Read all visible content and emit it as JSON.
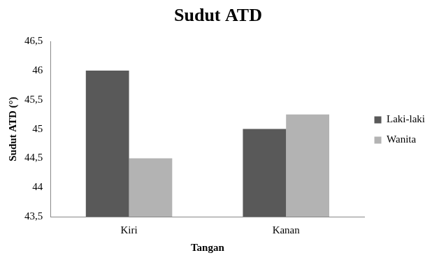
{
  "chart_data": {
    "type": "bar",
    "title": "Sudut ATD",
    "x_label": "Tangan",
    "y_label": "Sudut ATD (°)",
    "categories": [
      "Kiri",
      "Kanan"
    ],
    "series": [
      {
        "name": "Laki-laki",
        "color": "#595959",
        "values": [
          46,
          45
        ]
      },
      {
        "name": "Wanita",
        "color": "#b3b3b3",
        "values": [
          44.5,
          45.25
        ]
      }
    ],
    "ylim": [
      43.5,
      46.5
    ],
    "yticks": [
      {
        "value": 43.5,
        "label": "43,5"
      },
      44,
      {
        "value": 44.5,
        "label": "44,5"
      },
      45,
      {
        "value": 45.5,
        "label": "45,5"
      },
      46,
      {
        "value": 46.5,
        "label": "46,5"
      }
    ],
    "grid": false,
    "legend": "right"
  }
}
